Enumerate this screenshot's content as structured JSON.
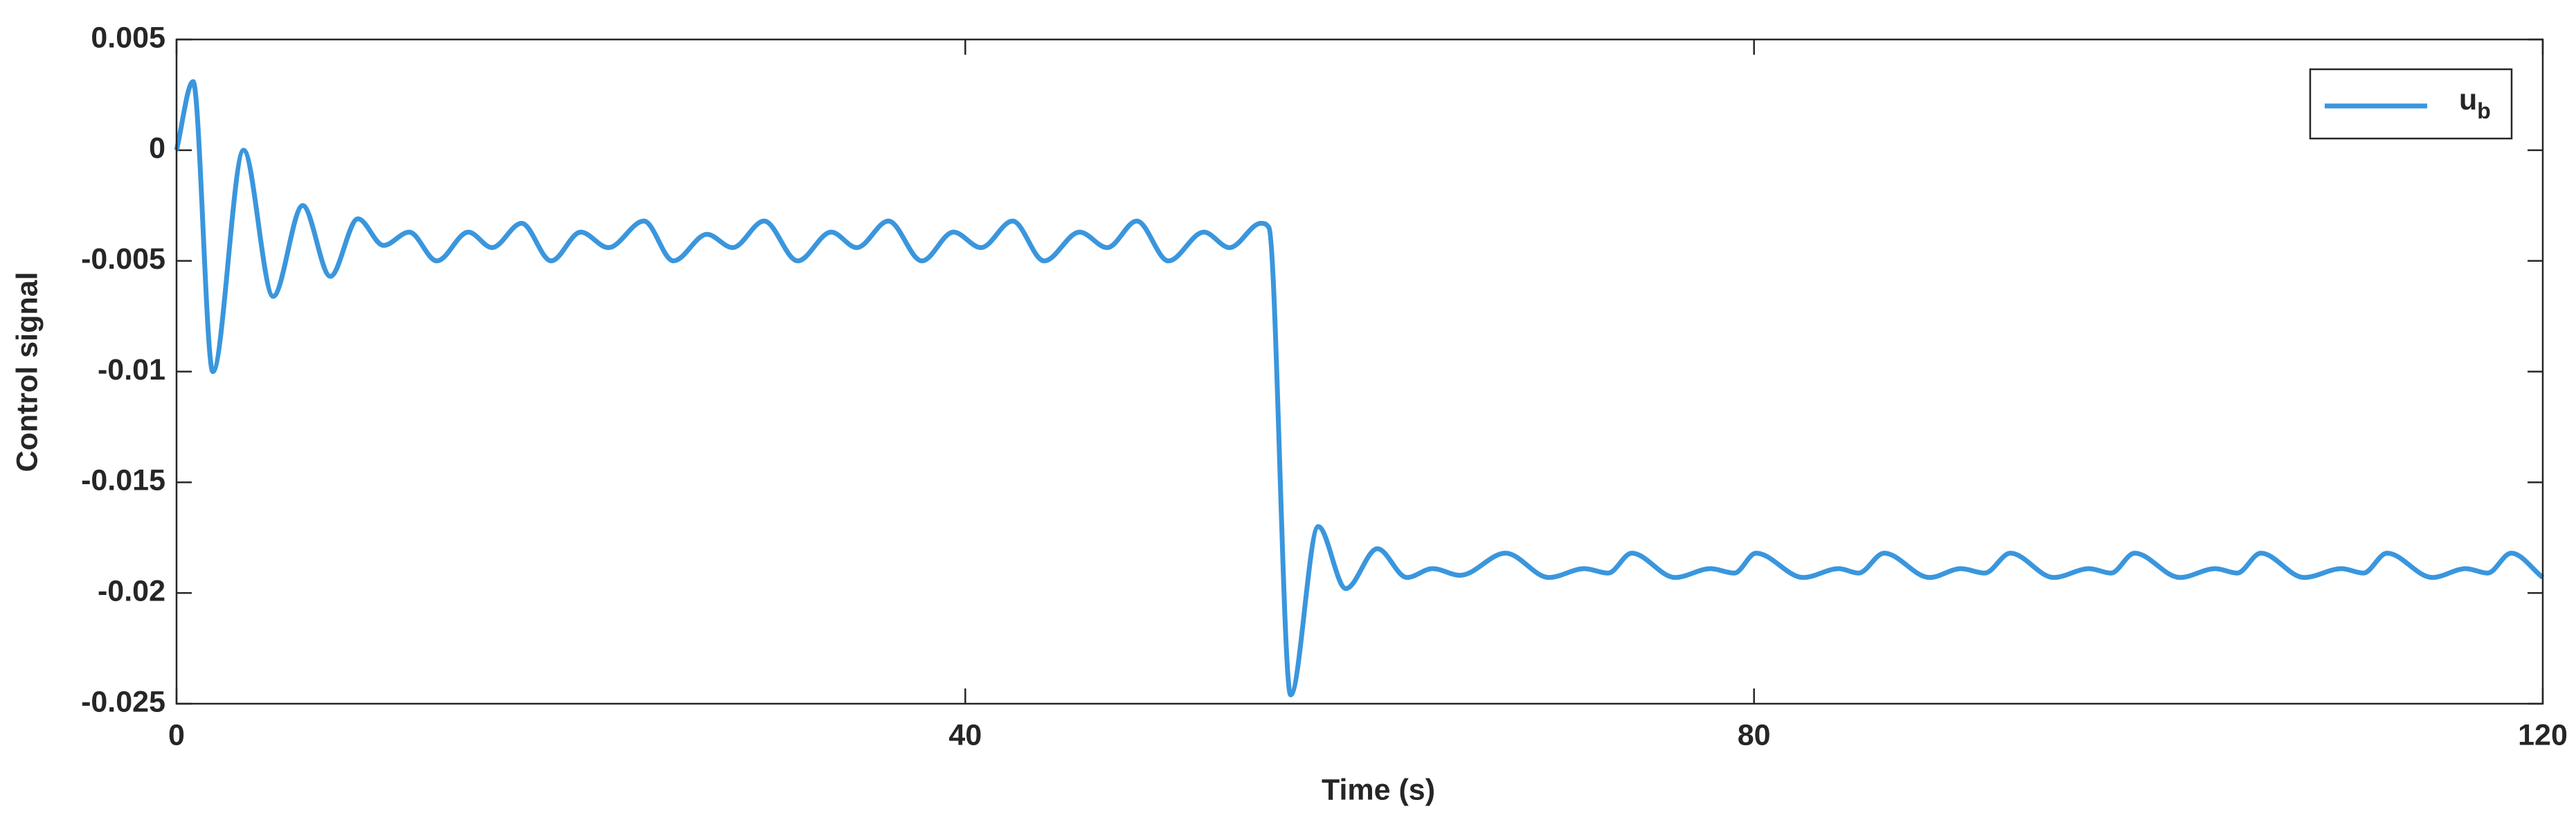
{
  "chart_data": {
    "type": "line",
    "xlabel": "Time (s)",
    "ylabel": "Control signal",
    "x": [
      0,
      0.84,
      1.84,
      3.4,
      4.9,
      6.4,
      7.8,
      9.2,
      10.5,
      11.8,
      13.2,
      14.8,
      16.0,
      17.5,
      19.0,
      20.5,
      21.9,
      23.7,
      25.2,
      26.9,
      28.2,
      29.8,
      31.5,
      33.2,
      34.5,
      36.1,
      37.8,
      39.4,
      40.8,
      42.4,
      44.0,
      45.8,
      47.2,
      48.7,
      50.3,
      52.1,
      53.4,
      55.0,
      55.4,
      56.5,
      57.9,
      59.3,
      60.9,
      62.4,
      63.7,
      65.1,
      67.4,
      69.6,
      71.4,
      72.6,
      73.8,
      76.0,
      77.8,
      79.0,
      80.1,
      82.5,
      84.3,
      85.3,
      86.6,
      88.9,
      90.5,
      91.7,
      93.0,
      95.2,
      97.0,
      98.1,
      99.3,
      101.6,
      103.4,
      104.5,
      105.7,
      107.9,
      109.8,
      110.9,
      112.1,
      114.4,
      116.1,
      117.2,
      118.4,
      120
    ],
    "series": [
      {
        "name": "u_b",
        "color": "#3a96dd",
        "values": [
          0,
          0.0031,
          -0.01,
          0.0,
          -0.0066,
          -0.0025,
          -0.0057,
          -0.0031,
          -0.0043,
          -0.0037,
          -0.005,
          -0.0037,
          -0.0044,
          -0.0033,
          -0.005,
          -0.0037,
          -0.0044,
          -0.0032,
          -0.005,
          -0.0038,
          -0.0044,
          -0.0032,
          -0.005,
          -0.0037,
          -0.0044,
          -0.0032,
          -0.005,
          -0.0037,
          -0.0044,
          -0.0032,
          -0.005,
          -0.0037,
          -0.0044,
          -0.0032,
          -0.005,
          -0.0037,
          -0.0044,
          -0.0033,
          -0.0035,
          -0.0246,
          -0.017,
          -0.0198,
          -0.018,
          -0.0193,
          -0.0189,
          -0.0192,
          -0.0182,
          -0.0193,
          -0.0189,
          -0.0191,
          -0.0182,
          -0.0193,
          -0.0189,
          -0.0191,
          -0.0182,
          -0.0193,
          -0.0189,
          -0.0191,
          -0.0182,
          -0.0193,
          -0.0189,
          -0.0191,
          -0.0182,
          -0.0193,
          -0.0189,
          -0.0191,
          -0.0182,
          -0.0193,
          -0.0189,
          -0.0191,
          -0.0182,
          -0.0193,
          -0.0189,
          -0.0191,
          -0.0182,
          -0.0193,
          -0.0189,
          -0.0191,
          -0.0182,
          -0.0193
        ]
      }
    ],
    "xlim": [
      0,
      120
    ],
    "xticks": [
      0,
      40,
      80,
      120
    ],
    "ylim": [
      -0.025,
      0.005
    ],
    "yticks": [
      -0.025,
      -0.02,
      -0.015,
      -0.01,
      -0.005,
      0,
      0.005
    ],
    "grid": false,
    "legend": "upper right"
  }
}
